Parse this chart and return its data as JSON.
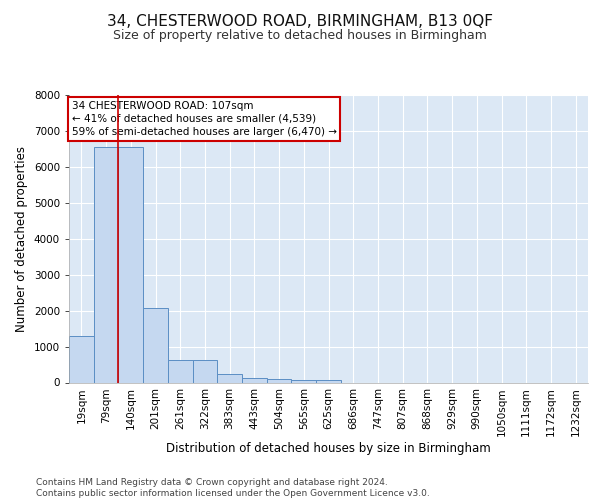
{
  "title_line1": "34, CHESTERWOOD ROAD, BIRMINGHAM, B13 0QF",
  "title_line2": "Size of property relative to detached houses in Birmingham",
  "xlabel": "Distribution of detached houses by size in Birmingham",
  "ylabel": "Number of detached properties",
  "footnote": "Contains HM Land Registry data © Crown copyright and database right 2024.\nContains public sector information licensed under the Open Government Licence v3.0.",
  "bin_labels": [
    "19sqm",
    "79sqm",
    "140sqm",
    "201sqm",
    "261sqm",
    "322sqm",
    "383sqm",
    "443sqm",
    "504sqm",
    "565sqm",
    "625sqm",
    "686sqm",
    "747sqm",
    "807sqm",
    "868sqm",
    "929sqm",
    "990sqm",
    "1050sqm",
    "1111sqm",
    "1172sqm",
    "1232sqm"
  ],
  "bar_values": [
    1300,
    6550,
    6550,
    2060,
    620,
    620,
    250,
    130,
    110,
    80,
    80,
    0,
    0,
    0,
    0,
    0,
    0,
    0,
    0,
    0,
    0
  ],
  "bar_color": "#c5d8f0",
  "bar_edge_color": "#5b8ec4",
  "background_color": "#dce8f5",
  "grid_color": "#ffffff",
  "property_line_x": 1.5,
  "property_line_color": "#cc0000",
  "annotation_text": "34 CHESTERWOOD ROAD: 107sqm\n← 41% of detached houses are smaller (4,539)\n59% of semi-detached houses are larger (6,470) →",
  "annotation_box_color": "#cc0000",
  "annotation_text_color": "#000000",
  "ylim": [
    0,
    8000
  ],
  "yticks": [
    0,
    1000,
    2000,
    3000,
    4000,
    5000,
    6000,
    7000,
    8000
  ],
  "title1_fontsize": 11,
  "title2_fontsize": 9,
  "xlabel_fontsize": 8.5,
  "ylabel_fontsize": 8.5,
  "tick_fontsize": 7.5,
  "footnote_fontsize": 6.5,
  "ann_fontsize": 7.5
}
